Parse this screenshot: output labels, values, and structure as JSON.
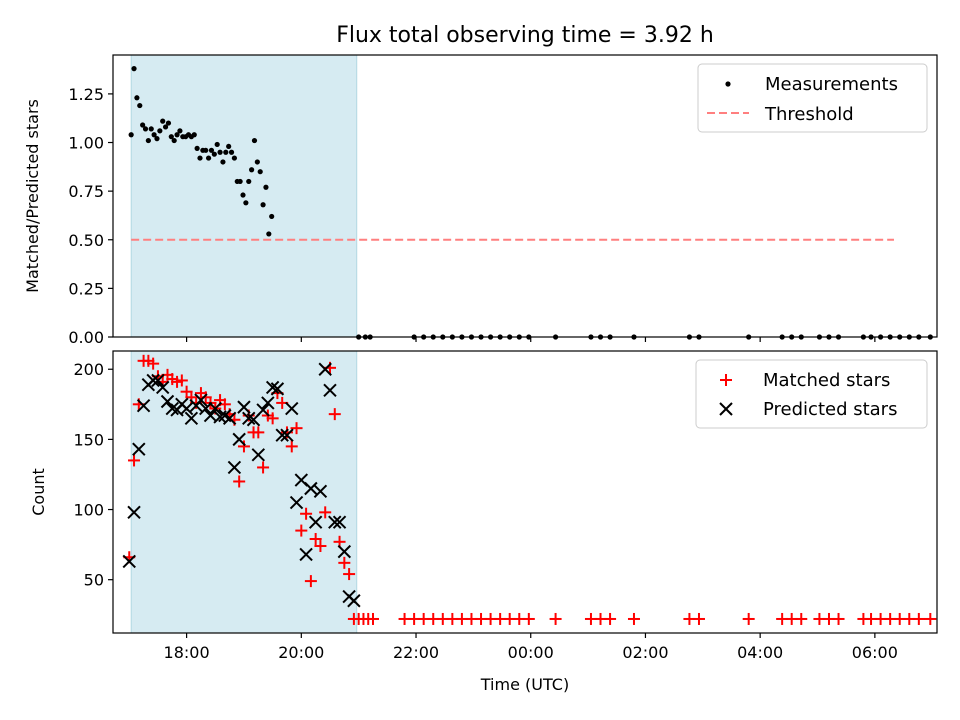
{
  "chart_data": [
    {
      "type": "scatter",
      "title": "Flux total observing time = 3.92 h",
      "xlabel": "",
      "ylabel": "Matched/Predicted stars",
      "xlim": [
        "16:43",
        "07:05"
      ],
      "ylim": [
        0,
        1.45
      ],
      "grid": false,
      "legend": "top-right",
      "yticks": [
        0.0,
        0.25,
        0.5,
        0.75,
        1.0,
        1.25
      ],
      "ytick_labels": [
        "0.00",
        "0.25",
        "0.50",
        "0.75",
        "1.00",
        "1.25"
      ],
      "shaded_span": {
        "x": [
          "17:02",
          "20:58"
        ],
        "color": "#add8e6"
      },
      "series": [
        {
          "name": "Measurements",
          "marker": "dot",
          "color": "#000000",
          "points": [
            [
              "17:02",
              1.04
            ],
            [
              "17:05",
              1.38
            ],
            [
              "17:08",
              1.23
            ],
            [
              "17:11",
              1.19
            ],
            [
              "17:14",
              1.09
            ],
            [
              "17:17",
              1.07
            ],
            [
              "17:20",
              1.01
            ],
            [
              "17:23",
              1.07
            ],
            [
              "17:26",
              1.04
            ],
            [
              "17:29",
              1.02
            ],
            [
              "17:32",
              1.06
            ],
            [
              "17:35",
              1.11
            ],
            [
              "17:38",
              1.08
            ],
            [
              "17:41",
              1.1
            ],
            [
              "17:44",
              1.03
            ],
            [
              "17:47",
              1.01
            ],
            [
              "17:50",
              1.04
            ],
            [
              "17:53",
              1.06
            ],
            [
              "17:56",
              1.03
            ],
            [
              "17:59",
              1.03
            ],
            [
              "18:02",
              1.04
            ],
            [
              "18:05",
              1.03
            ],
            [
              "18:08",
              1.04
            ],
            [
              "18:11",
              0.97
            ],
            [
              "18:14",
              0.92
            ],
            [
              "18:17",
              0.96
            ],
            [
              "18:20",
              0.96
            ],
            [
              "18:23",
              0.92
            ],
            [
              "18:26",
              0.96
            ],
            [
              "18:29",
              0.94
            ],
            [
              "18:32",
              0.99
            ],
            [
              "18:35",
              0.95
            ],
            [
              "18:38",
              0.9
            ],
            [
              "18:41",
              0.95
            ],
            [
              "18:44",
              0.98
            ],
            [
              "18:47",
              0.95
            ],
            [
              "18:50",
              0.92
            ],
            [
              "18:53",
              0.8
            ],
            [
              "18:56",
              0.8
            ],
            [
              "18:59",
              0.73
            ],
            [
              "19:02",
              0.69
            ],
            [
              "19:05",
              0.8
            ],
            [
              "19:08",
              0.86
            ],
            [
              "19:11",
              1.01
            ],
            [
              "19:14",
              0.9
            ],
            [
              "19:17",
              0.85
            ],
            [
              "19:20",
              0.68
            ],
            [
              "19:23",
              0.77
            ],
            [
              "19:26",
              0.53
            ],
            [
              "19:29",
              0.62
            ],
            [
              "21:00",
              0
            ],
            [
              "21:07",
              0
            ],
            [
              "21:12",
              0
            ],
            [
              "21:58",
              0
            ],
            [
              "22:08",
              0
            ],
            [
              "22:18",
              0
            ],
            [
              "22:28",
              0
            ],
            [
              "22:38",
              0
            ],
            [
              "22:48",
              0
            ],
            [
              "22:58",
              0
            ],
            [
              "23:08",
              0
            ],
            [
              "23:18",
              0
            ],
            [
              "23:28",
              0
            ],
            [
              "23:38",
              0
            ],
            [
              "23:48",
              0
            ],
            [
              "23:58",
              0
            ],
            [
              "00:26",
              0
            ],
            [
              "01:03",
              0
            ],
            [
              "01:13",
              0
            ],
            [
              "01:23",
              0
            ],
            [
              "01:48",
              0
            ],
            [
              "02:46",
              0
            ],
            [
              "02:56",
              0
            ],
            [
              "03:48",
              0
            ],
            [
              "04:23",
              0
            ],
            [
              "04:33",
              0
            ],
            [
              "04:43",
              0
            ],
            [
              "05:02",
              0
            ],
            [
              "05:12",
              0
            ],
            [
              "05:22",
              0
            ],
            [
              "05:48",
              0
            ],
            [
              "05:56",
              0
            ],
            [
              "06:06",
              0
            ],
            [
              "06:16",
              0
            ],
            [
              "06:26",
              0
            ],
            [
              "06:36",
              0
            ],
            [
              "06:46",
              0
            ],
            [
              "06:58",
              0
            ]
          ]
        },
        {
          "name": "Threshold",
          "style": "dashed",
          "color": "#ff7f7f",
          "points": [
            [
              "17:02",
              0.5
            ],
            [
              "06:20",
              0.5
            ]
          ]
        }
      ]
    },
    {
      "type": "scatter",
      "title": "",
      "xlabel": "Time (UTC)",
      "ylabel": "Count",
      "xlim": [
        "16:43",
        "07:05"
      ],
      "ylim": [
        12,
        213
      ],
      "grid": false,
      "legend": "top-right",
      "yticks": [
        50,
        100,
        150,
        200
      ],
      "ytick_labels": [
        "50",
        "100",
        "150",
        "200"
      ],
      "xticks": [
        "18:00",
        "20:00",
        "22:00",
        "00:00",
        "02:00",
        "04:00",
        "06:00"
      ],
      "shaded_span": {
        "x": [
          "17:02",
          "20:58"
        ],
        "color": "#add8e6"
      },
      "series": [
        {
          "name": "Matched stars",
          "marker": "plus",
          "color": "#ff0000",
          "points": [
            [
              "17:00",
              66
            ],
            [
              "17:05",
              135
            ],
            [
              "17:10",
              175
            ],
            [
              "17:15",
              206
            ],
            [
              "17:20",
              206
            ],
            [
              "17:25",
              204
            ],
            [
              "17:30",
              195
            ],
            [
              "17:35",
              191
            ],
            [
              "17:40",
              196
            ],
            [
              "17:45",
              193
            ],
            [
              "17:50",
              191
            ],
            [
              "17:55",
              192
            ],
            [
              "18:00",
              184
            ],
            [
              "18:05",
              180
            ],
            [
              "18:10",
              176
            ],
            [
              "18:15",
              183
            ],
            [
              "18:20",
              180
            ],
            [
              "18:25",
              176
            ],
            [
              "18:30",
              172
            ],
            [
              "18:35",
              178
            ],
            [
              "18:40",
              175
            ],
            [
              "18:45",
              168
            ],
            [
              "18:50",
              164
            ],
            [
              "18:55",
              120
            ],
            [
              "19:00",
              145
            ],
            [
              "19:05",
              167
            ],
            [
              "19:10",
              155
            ],
            [
              "19:15",
              155
            ],
            [
              "19:20",
              130
            ],
            [
              "19:25",
              167
            ],
            [
              "19:30",
              165
            ],
            [
              "19:35",
              183
            ],
            [
              "19:40",
              176
            ],
            [
              "19:45",
              155
            ],
            [
              "19:50",
              145
            ],
            [
              "19:55",
              158
            ],
            [
              "20:00",
              85
            ],
            [
              "20:05",
              97
            ],
            [
              "20:10",
              49
            ],
            [
              "20:15",
              79
            ],
            [
              "20:20",
              74
            ],
            [
              "20:25",
              98
            ],
            [
              "20:30",
              201
            ],
            [
              "20:35",
              168
            ],
            [
              "20:40",
              77
            ],
            [
              "20:45",
              62
            ],
            [
              "20:50",
              54
            ],
            [
              "20:55",
              22
            ],
            [
              "21:00",
              22
            ],
            [
              "21:05",
              22
            ],
            [
              "21:10",
              22
            ],
            [
              "21:15",
              22
            ],
            [
              "21:48",
              22
            ],
            [
              "21:58",
              22
            ],
            [
              "22:08",
              22
            ],
            [
              "22:18",
              22
            ],
            [
              "22:28",
              22
            ],
            [
              "22:38",
              22
            ],
            [
              "22:48",
              22
            ],
            [
              "22:58",
              22
            ],
            [
              "23:08",
              22
            ],
            [
              "23:18",
              22
            ],
            [
              "23:28",
              22
            ],
            [
              "23:38",
              22
            ],
            [
              "23:48",
              22
            ],
            [
              "23:58",
              22
            ],
            [
              "00:26",
              22
            ],
            [
              "01:03",
              22
            ],
            [
              "01:13",
              22
            ],
            [
              "01:23",
              22
            ],
            [
              "01:48",
              22
            ],
            [
              "02:46",
              22
            ],
            [
              "02:56",
              22
            ],
            [
              "03:48",
              22
            ],
            [
              "04:23",
              22
            ],
            [
              "04:33",
              22
            ],
            [
              "04:43",
              22
            ],
            [
              "05:02",
              22
            ],
            [
              "05:12",
              22
            ],
            [
              "05:22",
              22
            ],
            [
              "05:48",
              22
            ],
            [
              "05:56",
              22
            ],
            [
              "06:06",
              22
            ],
            [
              "06:16",
              22
            ],
            [
              "06:26",
              22
            ],
            [
              "06:36",
              22
            ],
            [
              "06:46",
              22
            ],
            [
              "06:58",
              22
            ]
          ]
        },
        {
          "name": "Predicted stars",
          "marker": "x",
          "color": "#000000",
          "points": [
            [
              "17:00",
              63
            ],
            [
              "17:05",
              98
            ],
            [
              "17:10",
              143
            ],
            [
              "17:15",
              174
            ],
            [
              "17:20",
              189
            ],
            [
              "17:25",
              192
            ],
            [
              "17:30",
              192
            ],
            [
              "17:35",
              187
            ],
            [
              "17:40",
              177
            ],
            [
              "17:45",
              172
            ],
            [
              "17:50",
              171
            ],
            [
              "17:55",
              175
            ],
            [
              "18:00",
              172
            ],
            [
              "18:05",
              165
            ],
            [
              "18:10",
              174
            ],
            [
              "18:15",
              178
            ],
            [
              "18:20",
              172
            ],
            [
              "18:25",
              167
            ],
            [
              "18:30",
              172
            ],
            [
              "18:35",
              166
            ],
            [
              "18:40",
              167
            ],
            [
              "18:45",
              165
            ],
            [
              "18:50",
              130
            ],
            [
              "18:55",
              150
            ],
            [
              "19:00",
              173
            ],
            [
              "19:05",
              165
            ],
            [
              "19:10",
              164
            ],
            [
              "19:15",
              139
            ],
            [
              "19:20",
              171
            ],
            [
              "19:25",
              176
            ],
            [
              "19:30",
              187
            ],
            [
              "19:35",
              186
            ],
            [
              "19:40",
              153
            ],
            [
              "19:45",
              153
            ],
            [
              "19:50",
              172
            ],
            [
              "19:55",
              105
            ],
            [
              "20:00",
              121
            ],
            [
              "20:05",
              68
            ],
            [
              "20:10",
              115
            ],
            [
              "20:15",
              91
            ],
            [
              "20:20",
              113
            ],
            [
              "20:25",
              200
            ],
            [
              "20:30",
              185
            ],
            [
              "20:35",
              91
            ],
            [
              "20:40",
              91
            ],
            [
              "20:45",
              70
            ],
            [
              "20:50",
              38
            ],
            [
              "20:55",
              35
            ]
          ]
        }
      ]
    }
  ]
}
